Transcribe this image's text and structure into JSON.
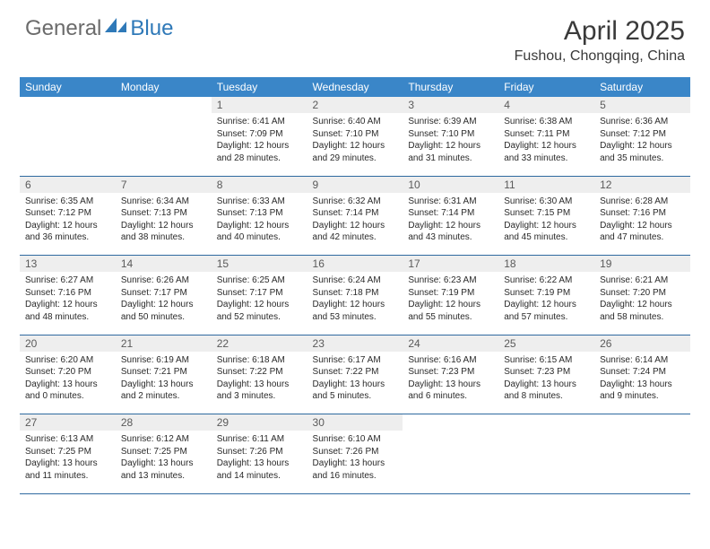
{
  "brand": {
    "general": "General",
    "blue": "Blue"
  },
  "title": "April 2025",
  "location": "Fushou, Chongqing, China",
  "colors": {
    "header_bg": "#3a86c8",
    "header_text": "#ffffff",
    "daynum_bg": "#eeeeee",
    "week_border": "#2f6aa0",
    "brand_blue": "#2f79b8",
    "brand_gray": "#6b6b6b"
  },
  "day_headers": [
    "Sunday",
    "Monday",
    "Tuesday",
    "Wednesday",
    "Thursday",
    "Friday",
    "Saturday"
  ],
  "weeks": [
    {
      "nums": [
        "",
        "",
        "1",
        "2",
        "3",
        "4",
        "5"
      ],
      "cells": [
        "",
        "",
        "Sunrise: 6:41 AM\nSunset: 7:09 PM\nDaylight: 12 hours and 28 minutes.",
        "Sunrise: 6:40 AM\nSunset: 7:10 PM\nDaylight: 12 hours and 29 minutes.",
        "Sunrise: 6:39 AM\nSunset: 7:10 PM\nDaylight: 12 hours and 31 minutes.",
        "Sunrise: 6:38 AM\nSunset: 7:11 PM\nDaylight: 12 hours and 33 minutes.",
        "Sunrise: 6:36 AM\nSunset: 7:12 PM\nDaylight: 12 hours and 35 minutes."
      ]
    },
    {
      "nums": [
        "6",
        "7",
        "8",
        "9",
        "10",
        "11",
        "12"
      ],
      "cells": [
        "Sunrise: 6:35 AM\nSunset: 7:12 PM\nDaylight: 12 hours and 36 minutes.",
        "Sunrise: 6:34 AM\nSunset: 7:13 PM\nDaylight: 12 hours and 38 minutes.",
        "Sunrise: 6:33 AM\nSunset: 7:13 PM\nDaylight: 12 hours and 40 minutes.",
        "Sunrise: 6:32 AM\nSunset: 7:14 PM\nDaylight: 12 hours and 42 minutes.",
        "Sunrise: 6:31 AM\nSunset: 7:14 PM\nDaylight: 12 hours and 43 minutes.",
        "Sunrise: 6:30 AM\nSunset: 7:15 PM\nDaylight: 12 hours and 45 minutes.",
        "Sunrise: 6:28 AM\nSunset: 7:16 PM\nDaylight: 12 hours and 47 minutes."
      ]
    },
    {
      "nums": [
        "13",
        "14",
        "15",
        "16",
        "17",
        "18",
        "19"
      ],
      "cells": [
        "Sunrise: 6:27 AM\nSunset: 7:16 PM\nDaylight: 12 hours and 48 minutes.",
        "Sunrise: 6:26 AM\nSunset: 7:17 PM\nDaylight: 12 hours and 50 minutes.",
        "Sunrise: 6:25 AM\nSunset: 7:17 PM\nDaylight: 12 hours and 52 minutes.",
        "Sunrise: 6:24 AM\nSunset: 7:18 PM\nDaylight: 12 hours and 53 minutes.",
        "Sunrise: 6:23 AM\nSunset: 7:19 PM\nDaylight: 12 hours and 55 minutes.",
        "Sunrise: 6:22 AM\nSunset: 7:19 PM\nDaylight: 12 hours and 57 minutes.",
        "Sunrise: 6:21 AM\nSunset: 7:20 PM\nDaylight: 12 hours and 58 minutes."
      ]
    },
    {
      "nums": [
        "20",
        "21",
        "22",
        "23",
        "24",
        "25",
        "26"
      ],
      "cells": [
        "Sunrise: 6:20 AM\nSunset: 7:20 PM\nDaylight: 13 hours and 0 minutes.",
        "Sunrise: 6:19 AM\nSunset: 7:21 PM\nDaylight: 13 hours and 2 minutes.",
        "Sunrise: 6:18 AM\nSunset: 7:22 PM\nDaylight: 13 hours and 3 minutes.",
        "Sunrise: 6:17 AM\nSunset: 7:22 PM\nDaylight: 13 hours and 5 minutes.",
        "Sunrise: 6:16 AM\nSunset: 7:23 PM\nDaylight: 13 hours and 6 minutes.",
        "Sunrise: 6:15 AM\nSunset: 7:23 PM\nDaylight: 13 hours and 8 minutes.",
        "Sunrise: 6:14 AM\nSunset: 7:24 PM\nDaylight: 13 hours and 9 minutes."
      ]
    },
    {
      "nums": [
        "27",
        "28",
        "29",
        "30",
        "",
        "",
        ""
      ],
      "cells": [
        "Sunrise: 6:13 AM\nSunset: 7:25 PM\nDaylight: 13 hours and 11 minutes.",
        "Sunrise: 6:12 AM\nSunset: 7:25 PM\nDaylight: 13 hours and 13 minutes.",
        "Sunrise: 6:11 AM\nSunset: 7:26 PM\nDaylight: 13 hours and 14 minutes.",
        "Sunrise: 6:10 AM\nSunset: 7:26 PM\nDaylight: 13 hours and 16 minutes.",
        "",
        "",
        ""
      ]
    }
  ]
}
